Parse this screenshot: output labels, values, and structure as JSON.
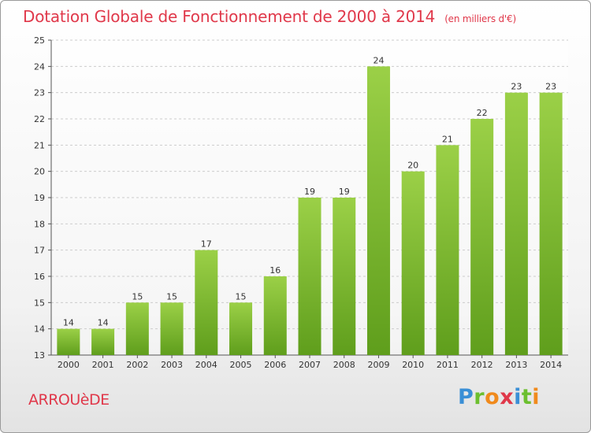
{
  "header": {
    "title": "Dotation Globale de Fonctionnement de 2000 à 2014",
    "unit": "(en milliers d'€)"
  },
  "footer": {
    "commune": "ARROUèDE",
    "logo": [
      "P",
      "r",
      "o",
      "x",
      "i",
      "t",
      "i"
    ]
  },
  "colors": {
    "title": "#e0384a",
    "bar_top": "#9bd047",
    "bar_bottom": "#5f9e1c",
    "grid": "#cccccc",
    "axis": "#555555"
  },
  "chart_data": {
    "type": "bar",
    "title": "Dotation Globale de Fonctionnement de 2000 à 2014",
    "subtitle": "(en milliers d'€)",
    "categories": [
      "2000",
      "2001",
      "2002",
      "2003",
      "2004",
      "2005",
      "2006",
      "2007",
      "2008",
      "2009",
      "2010",
      "2011",
      "2012",
      "2013",
      "2014"
    ],
    "values": [
      14,
      14,
      15,
      15,
      17,
      15,
      16,
      19,
      19,
      24,
      20,
      21,
      22,
      23,
      23
    ],
    "ylim": [
      13,
      25
    ],
    "yticks": [
      13,
      14,
      15,
      16,
      17,
      18,
      19,
      20,
      21,
      22,
      23,
      24,
      25
    ],
    "grid": true,
    "data_labels": true
  }
}
